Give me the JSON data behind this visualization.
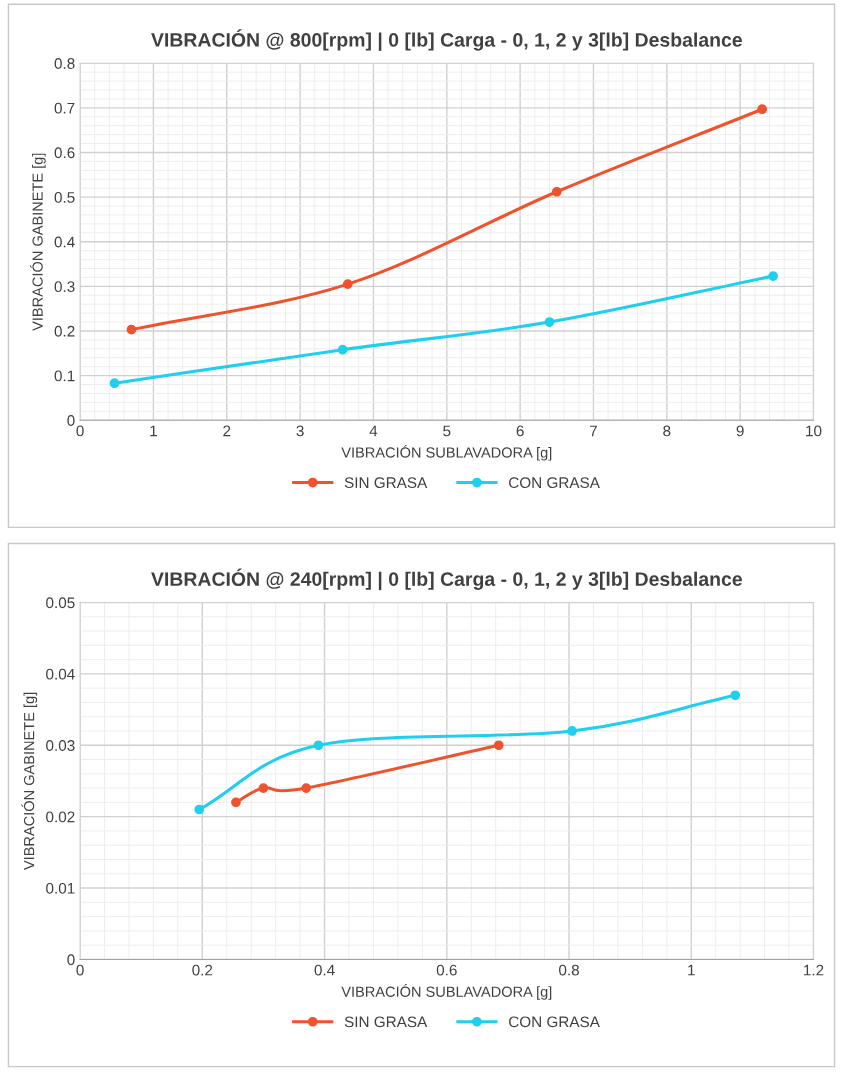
{
  "chart_data": [
    {
      "type": "line",
      "title": "VIBRACIÓN @ 800[rpm] | 0 [lb] Carga - 0, 1, 2 y 3[lb] Desbalance",
      "xlabel": "VIBRACIÓN SUBLAVADORA [g]",
      "ylabel": "VIBRACIÓN GABINETE [g]",
      "xlim": [
        0,
        10
      ],
      "xticks": [
        0,
        1,
        2,
        3,
        4,
        5,
        6,
        7,
        8,
        9,
        10
      ],
      "ylim": [
        0,
        0.8
      ],
      "yticks": [
        0,
        0.1,
        0.2,
        0.3,
        0.4,
        0.5,
        0.6,
        0.7,
        0.8
      ],
      "grid": true,
      "legend": "bottom",
      "marker": "circle",
      "line_style": "solid",
      "series": [
        {
          "name": "SIN GRASA",
          "color": "#f0522e",
          "x": [
            0.7,
            3.65,
            6.5,
            9.3
          ],
          "values": [
            0.203,
            0.305,
            0.512,
            0.697
          ]
        },
        {
          "name": "CON GRASA",
          "color": "#1fcff0",
          "x": [
            0.47,
            3.58,
            6.4,
            9.45
          ],
          "values": [
            0.083,
            0.158,
            0.22,
            0.323
          ]
        }
      ]
    },
    {
      "type": "line",
      "title": "VIBRACIÓN @ 240[rpm] | 0 [lb] Carga - 0, 1, 2 y 3[lb] Desbalance",
      "xlabel": "VIBRACIÓN SUBLAVADORA [g]",
      "ylabel": "VIBRACIÓN GABINETE [g]",
      "xlim": [
        0,
        1.2
      ],
      "xticks": [
        0,
        0.2,
        0.4,
        0.6,
        0.8,
        1,
        1.2
      ],
      "ylim": [
        0,
        0.05
      ],
      "yticks": [
        0,
        0.01,
        0.02,
        0.03,
        0.04,
        0.05
      ],
      "grid": true,
      "legend": "bottom",
      "marker": "circle",
      "line_style": "solid",
      "series": [
        {
          "name": "SIN GRASA",
          "color": "#f0522e",
          "x": [
            0.255,
            0.3,
            0.37,
            0.685
          ],
          "values": [
            0.022,
            0.024,
            0.024,
            0.03
          ]
        },
        {
          "name": "CON GRASA",
          "color": "#1fcff0",
          "x": [
            0.195,
            0.39,
            0.805,
            1.072
          ],
          "values": [
            0.021,
            0.03,
            0.032,
            0.037
          ]
        }
      ]
    }
  ]
}
